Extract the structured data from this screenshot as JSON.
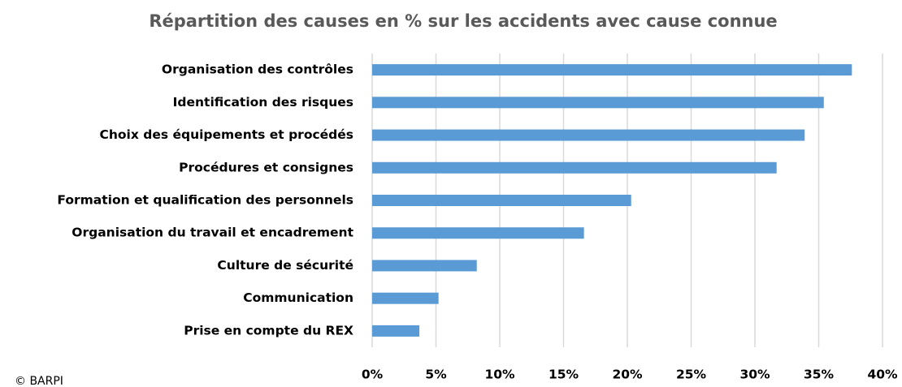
{
  "chart_data": {
    "type": "barh",
    "title": "Répartition des causes en % sur les accidents avec cause connue",
    "source": "© BARPI",
    "categories": [
      "Organisation des contrôles",
      "Identification des risques",
      "Choix des équipements et procédés",
      "Procédures et consignes",
      "Formation et qualification des personnels",
      "Organisation du travail et encadrement",
      "Culture de sécurité",
      "Communication",
      "Prise en compte du REX"
    ],
    "values": [
      37.6,
      35.4,
      33.9,
      31.7,
      20.3,
      16.6,
      8.2,
      5.2,
      3.7
    ],
    "color": "#5b9bd5",
    "xlim": [
      0,
      40
    ],
    "xticks": [
      {
        "value": 0,
        "label": "0%"
      },
      {
        "value": 5,
        "label": "5%"
      },
      {
        "value": 10,
        "label": "10%"
      },
      {
        "value": 15,
        "label": "15%"
      },
      {
        "value": 20,
        "label": "20%"
      },
      {
        "value": 25,
        "label": "25%"
      },
      {
        "value": 30,
        "label": "30%"
      },
      {
        "value": 35,
        "label": "35%"
      },
      {
        "value": 40,
        "label": "40%"
      }
    ],
    "grid": true
  }
}
